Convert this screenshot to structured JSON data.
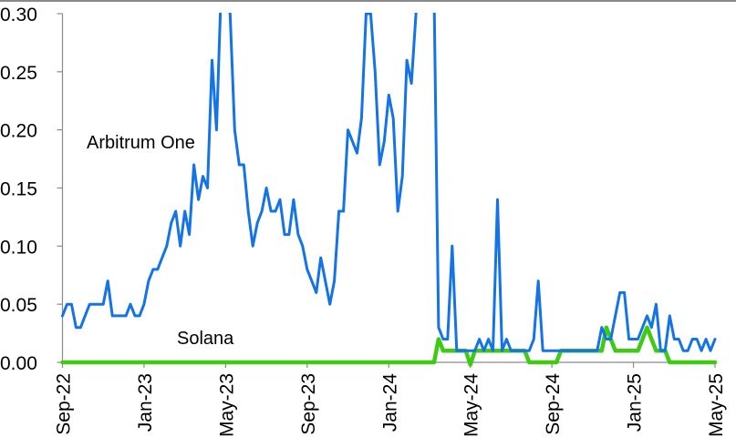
{
  "chart_data": {
    "type": "line",
    "title": "",
    "xlabel": "",
    "ylabel": "",
    "ylim": [
      0,
      0.3
    ],
    "yticks": [
      "0.00",
      "0.05",
      "0.10",
      "0.15",
      "0.20",
      "0.25",
      "0.30"
    ],
    "xticks": [
      "Sep-22",
      "Jan-23",
      "May-23",
      "Sep-23",
      "Jan-24",
      "May-24",
      "Sep-24",
      "Jan-25",
      "May-25"
    ],
    "grid": false,
    "legend": "inline annotations",
    "annotations": [
      {
        "text": "Arbitrum One",
        "series": "Arbitrum One"
      },
      {
        "text": "Solana",
        "series": "Solana"
      }
    ],
    "x_frequency": "weekly",
    "series": [
      {
        "name": "Arbitrum One",
        "color": "#1473e6",
        "values": [
          0.04,
          0.05,
          0.05,
          0.03,
          0.03,
          0.04,
          0.05,
          0.05,
          0.05,
          0.05,
          0.07,
          0.04,
          0.04,
          0.04,
          0.04,
          0.05,
          0.04,
          0.04,
          0.05,
          0.07,
          0.08,
          0.08,
          0.09,
          0.1,
          0.12,
          0.13,
          0.1,
          0.13,
          0.11,
          0.17,
          0.14,
          0.16,
          0.15,
          0.26,
          0.2,
          0.32,
          0.34,
          0.3,
          0.2,
          0.17,
          0.17,
          0.13,
          0.1,
          0.12,
          0.13,
          0.15,
          0.13,
          0.13,
          0.14,
          0.11,
          0.11,
          0.14,
          0.11,
          0.1,
          0.08,
          0.07,
          0.06,
          0.09,
          0.07,
          0.05,
          0.07,
          0.13,
          0.13,
          0.2,
          0.19,
          0.18,
          0.21,
          0.3,
          0.3,
          0.25,
          0.17,
          0.19,
          0.23,
          0.21,
          0.13,
          0.16,
          0.26,
          0.24,
          0.3,
          0.36,
          0.38,
          0.36,
          0.32,
          0.03,
          0.02,
          0.02,
          0.1,
          0.01,
          0.01,
          0.01,
          0.01,
          0.01,
          0.02,
          0.01,
          0.02,
          0.01,
          0.14,
          0.01,
          0.02,
          0.01,
          0.01,
          0.01,
          0.01,
          0.01,
          0.02,
          0.07,
          0.01,
          0.01,
          0.01,
          0.01,
          0.01,
          0.01,
          0.01,
          0.01,
          0.01,
          0.01,
          0.01,
          0.01,
          0.01,
          0.03,
          0.02,
          0.02,
          0.04,
          0.06,
          0.06,
          0.02,
          0.02,
          0.02,
          0.03,
          0.04,
          0.03,
          0.05,
          0.01,
          0.01,
          0.04,
          0.02,
          0.02,
          0.01,
          0.01,
          0.02,
          0.02,
          0.01,
          0.02,
          0.01,
          0.02
        ]
      },
      {
        "name": "Solana",
        "color": "#3fca14",
        "values": [
          0,
          0,
          0,
          0,
          0,
          0,
          0,
          0,
          0,
          0,
          0,
          0,
          0,
          0,
          0,
          0,
          0,
          0,
          0,
          0,
          0,
          0,
          0,
          0,
          0,
          0,
          0,
          0,
          0,
          0,
          0,
          0,
          0,
          0,
          0,
          0,
          0,
          0,
          0,
          0,
          0,
          0,
          0,
          0,
          0,
          0,
          0,
          0,
          0,
          0,
          0,
          0,
          0,
          0,
          0,
          0,
          0,
          0,
          0,
          0,
          0,
          0,
          0,
          0,
          0,
          0,
          0,
          0,
          0,
          0,
          0,
          0,
          0,
          0,
          0,
          0,
          0,
          0,
          0,
          0,
          0,
          0,
          0,
          0.02,
          0.01,
          0.01,
          0.01,
          0.01,
          0.01,
          0.01,
          -0.002,
          0.01,
          0.01,
          0.01,
          0.01,
          0.01,
          0.01,
          0.01,
          0.01,
          0.01,
          0.01,
          0.01,
          0.01,
          0,
          0,
          0,
          0,
          0,
          0,
          0,
          0.01,
          0.01,
          0.01,
          0.01,
          0.01,
          0.01,
          0.01,
          0.01,
          0.01,
          0.01,
          0.03,
          0.02,
          0.01,
          0.01,
          0.01,
          0.01,
          0.01,
          0.01,
          0.02,
          0.03,
          0.02,
          0.01,
          0.01,
          0.01,
          0,
          0,
          0,
          0,
          0,
          0,
          0,
          0,
          0,
          0,
          0
        ]
      }
    ]
  }
}
